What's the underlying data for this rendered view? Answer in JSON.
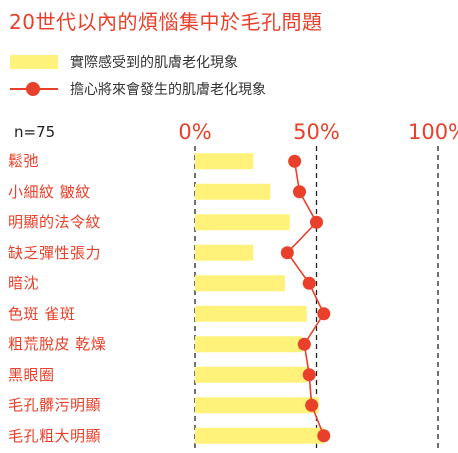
{
  "chart_data": {
    "type": "bar",
    "title": "20世代以內的煩惱集中於毛孔問題",
    "sample_label": "n=75",
    "categories": [
      "鬆弛",
      "小細紋 皺紋",
      "明顯的法令紋",
      "缺乏彈性張力",
      "暗沈",
      "色斑 雀斑",
      "粗荒脫皮 乾燥",
      "黑眼圈",
      "毛孔髒污明顯",
      "毛孔粗大明顯"
    ],
    "series": [
      {
        "name": "實際感受到的肌膚老化現象",
        "style": "bar",
        "values": [
          24,
          31,
          39,
          24,
          37,
          46,
          44,
          46,
          51,
          53
        ]
      },
      {
        "name": "擔心將來會發生的肌膚老化現象",
        "style": "line",
        "values": [
          41,
          43,
          50,
          38,
          47,
          53,
          45,
          47,
          48,
          53
        ]
      }
    ],
    "xlim": [
      0,
      100
    ],
    "ticks": [
      "0%",
      "50%",
      "100%"
    ],
    "tick_values": [
      0,
      50,
      100
    ],
    "grid": "dashed vertical at ticks",
    "legend_placement": "top-left",
    "colors": {
      "accent": "#e8402a",
      "bar": "#fff27a",
      "text": "#333333"
    }
  }
}
